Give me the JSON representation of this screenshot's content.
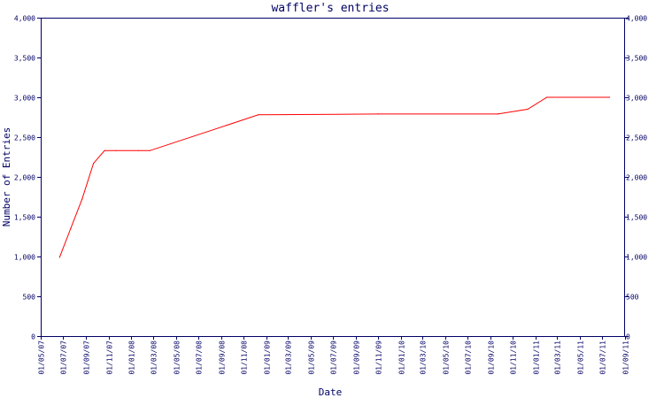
{
  "chart_data": {
    "type": "line",
    "title": "waffler's entries",
    "xlabel": "Date",
    "ylabel": "Number of Entries",
    "ylim": [
      0,
      4000
    ],
    "yticks": [
      0,
      500,
      1000,
      1500,
      2000,
      2500,
      3000,
      3500,
      4000
    ],
    "ytick_labels": [
      "0",
      "500",
      "1,000",
      "1,500",
      "2,000",
      "2,500",
      "3,000",
      "3,500",
      "4,000"
    ],
    "right_axis": true,
    "xlim": [
      "2007-05-01",
      "2011-09-01"
    ],
    "xticks": [
      "2007-05-01",
      "2007-07-01",
      "2007-09-01",
      "2007-11-01",
      "2008-01-01",
      "2008-03-01",
      "2008-05-01",
      "2008-07-01",
      "2008-09-01",
      "2008-11-01",
      "2009-01-01",
      "2009-03-01",
      "2009-05-01",
      "2009-07-01",
      "2009-09-01",
      "2009-11-01",
      "2010-01-01",
      "2010-03-01",
      "2010-05-01",
      "2010-07-01",
      "2010-09-01",
      "2010-11-01",
      "2011-01-01",
      "2011-03-01",
      "2011-05-01",
      "2011-07-01",
      "2011-09-01"
    ],
    "xtick_labels": [
      "01/05/07",
      "01/07/07",
      "01/09/07",
      "01/11/07",
      "01/01/08",
      "01/03/08",
      "01/05/08",
      "01/07/08",
      "01/09/08",
      "01/11/08",
      "01/01/09",
      "01/03/09",
      "01/05/09",
      "01/07/09",
      "01/09/09",
      "01/11/09",
      "01/01/10",
      "01/03/10",
      "01/05/10",
      "01/07/10",
      "01/09/10",
      "01/11/10",
      "01/01/11",
      "01/03/11",
      "01/05/11",
      "01/07/11",
      "01/09/11"
    ],
    "grid": false,
    "series": [
      {
        "color": "#ff0000",
        "x": [
          "2007-06-21",
          "2007-07-21",
          "2007-08-21",
          "2007-09-21",
          "2007-10-21",
          "2007-11-21",
          "2008-01-21",
          "2008-02-21",
          "2008-12-11",
          "2009-11-01",
          "2010-09-21",
          "2010-12-11",
          "2011-02-01",
          "2011-07-21"
        ],
        "y": [
          990,
          1350,
          1720,
          2170,
          2330,
          2330,
          2330,
          2330,
          2780,
          2790,
          2790,
          2850,
          3000,
          3000
        ]
      }
    ]
  }
}
